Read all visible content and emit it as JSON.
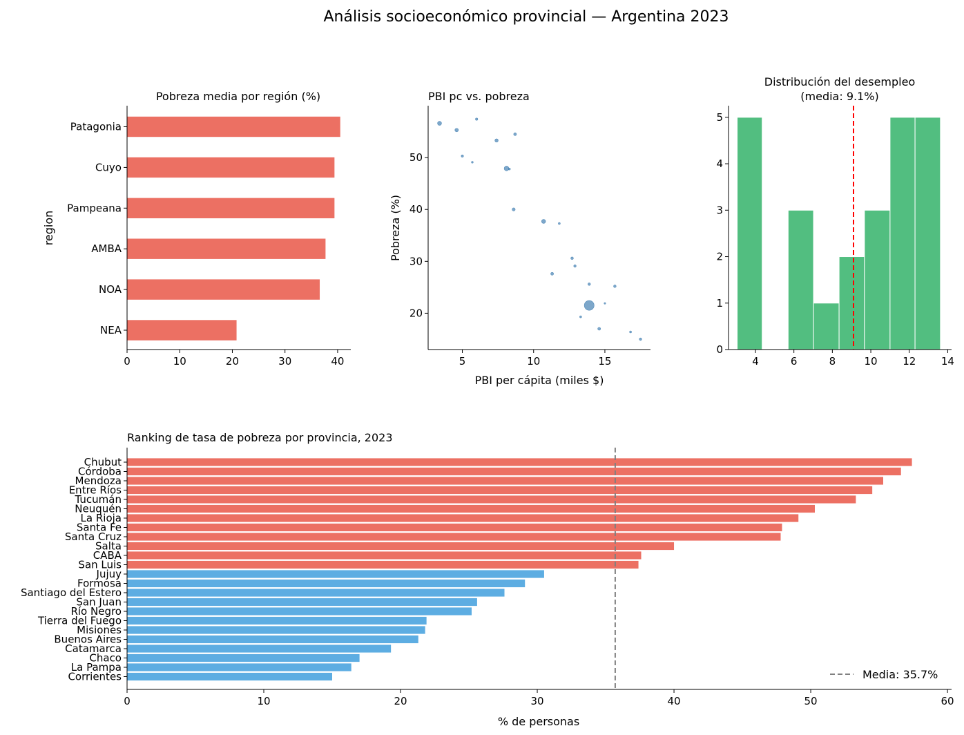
{
  "figure": {
    "suptitle": "Análisis socioeconómico provincial — Argentina 2023"
  },
  "colors": {
    "red": "#ec7063",
    "blue": "#5dade2",
    "steel": "#4682b4",
    "green": "#52be80",
    "mean_line_hist": "#ff0000",
    "mean_line_rank": "#808080"
  },
  "chart_data": [
    {
      "id": "regions",
      "type": "bar",
      "orientation": "horizontal",
      "title": "Pobreza media por región (%)",
      "xlabel": "",
      "ylabel": "region",
      "categories": [
        "NEA",
        "NOA",
        "AMBA",
        "Pampeana",
        "Cuyo",
        "Patagonia"
      ],
      "values": [
        20.8,
        36.6,
        37.7,
        39.4,
        39.4,
        40.5
      ],
      "xlim": [
        0,
        42.5
      ],
      "xticks": [
        0,
        10,
        20,
        30,
        40
      ],
      "color": "#ec7063"
    },
    {
      "id": "scatter",
      "type": "scatter",
      "title": "PBI pc vs. pobreza",
      "xlabel": "PBI per cápita (miles $)",
      "ylabel": "Pobreza (%)",
      "xlim": [
        2.6,
        18.2
      ],
      "ylim": [
        13,
        60
      ],
      "xticks": [
        5,
        10,
        15
      ],
      "yticks": [
        20,
        30,
        40,
        50
      ],
      "color": "#4682b4",
      "points": [
        {
          "x": 3.4,
          "y": 56.6,
          "s": 24
        },
        {
          "x": 4.6,
          "y": 55.3,
          "s": 18
        },
        {
          "x": 6.0,
          "y": 57.4,
          "s": 8
        },
        {
          "x": 7.4,
          "y": 53.3,
          "s": 16
        },
        {
          "x": 8.7,
          "y": 54.5,
          "s": 12
        },
        {
          "x": 5.0,
          "y": 50.3,
          "s": 8
        },
        {
          "x": 5.7,
          "y": 49.1,
          "s": 5
        },
        {
          "x": 8.1,
          "y": 47.9,
          "s": 32
        },
        {
          "x": 8.3,
          "y": 47.8,
          "s": 6
        },
        {
          "x": 8.6,
          "y": 40.0,
          "s": 14
        },
        {
          "x": 10.7,
          "y": 37.7,
          "s": 24
        },
        {
          "x": 11.8,
          "y": 37.3,
          "s": 6
        },
        {
          "x": 12.7,
          "y": 30.6,
          "s": 10
        },
        {
          "x": 12.9,
          "y": 29.1,
          "s": 9
        },
        {
          "x": 11.3,
          "y": 27.6,
          "s": 12
        },
        {
          "x": 13.9,
          "y": 25.6,
          "s": 10
        },
        {
          "x": 15.7,
          "y": 25.2,
          "s": 10
        },
        {
          "x": 13.9,
          "y": 21.5,
          "s": 140
        },
        {
          "x": 15.0,
          "y": 21.9,
          "s": 4
        },
        {
          "x": 13.3,
          "y": 19.3,
          "s": 6
        },
        {
          "x": 14.6,
          "y": 17.0,
          "s": 12
        },
        {
          "x": 16.8,
          "y": 16.4,
          "s": 6
        },
        {
          "x": 17.5,
          "y": 15.0,
          "s": 9
        }
      ]
    },
    {
      "id": "histogram",
      "type": "bar",
      "subtype": "histogram",
      "title": "Distribución del desempleo",
      "subtitle": "(media: 9.1%)",
      "xlim": [
        2.6,
        14.2
      ],
      "ylim": [
        0,
        5.25
      ],
      "xticks": [
        4,
        6,
        8,
        10,
        12,
        14
      ],
      "yticks": [
        0,
        1,
        2,
        3,
        4,
        5
      ],
      "bin_edges": [
        3.05,
        4.35,
        5.7,
        7.02,
        8.35,
        9.67,
        11.0,
        12.3,
        13.62
      ],
      "counts": [
        5,
        0,
        3,
        1,
        2,
        3,
        5,
        5
      ],
      "mean": 9.1,
      "color": "#52be80"
    },
    {
      "id": "ranking",
      "type": "bar",
      "orientation": "horizontal",
      "title": "Ranking de tasa de pobreza por provincia, 2023",
      "xlabel": "% de personas",
      "xlim": [
        0,
        60.3
      ],
      "xticks": [
        0,
        10,
        20,
        30,
        40,
        50,
        60
      ],
      "mean": 35.7,
      "legend": "Media: 35.7%",
      "legend_position": "lower right",
      "categories": [
        "Chubut",
        "Córdoba",
        "Mendoza",
        "Entre Ríos",
        "Tucumán",
        "Neuquén",
        "La Rioja",
        "Santa Fe",
        "Santa Cruz",
        "Salta",
        "CABA",
        "San Luis",
        "Jujuy",
        "Formosa",
        "Santiago del Estero",
        "San Juan",
        "Río Negro",
        "Tierra del Fuego",
        "Misiones",
        "Buenos Aires",
        "Catamarca",
        "Chaco",
        "La Pampa",
        "Corrientes"
      ],
      "values": [
        57.4,
        56.6,
        55.3,
        54.5,
        53.3,
        50.3,
        49.1,
        47.9,
        47.8,
        40.0,
        37.6,
        37.4,
        30.5,
        29.1,
        27.6,
        25.6,
        25.2,
        21.9,
        21.8,
        21.3,
        19.3,
        17.0,
        16.4,
        15.0
      ],
      "colors_rule": "red if value > mean, blue otherwise"
    }
  ]
}
